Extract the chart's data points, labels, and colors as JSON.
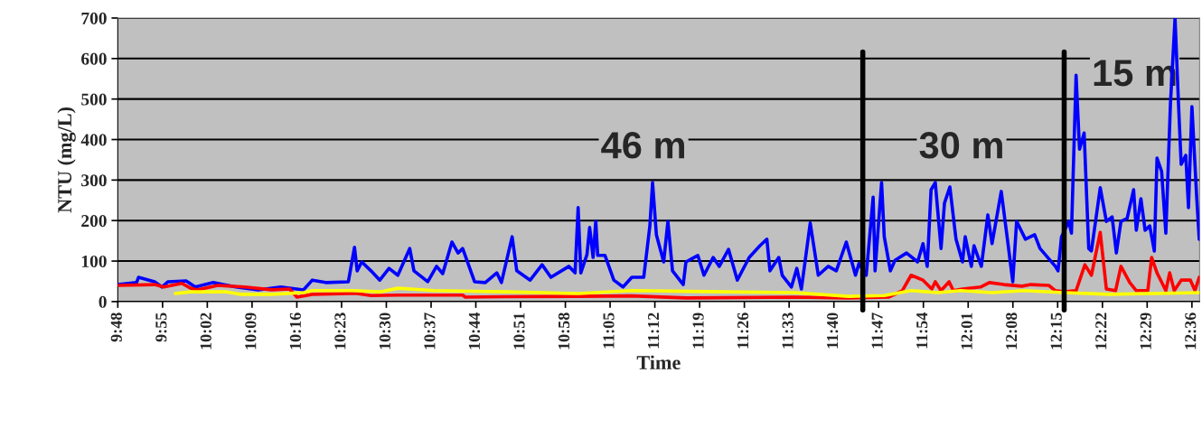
{
  "chart_data": {
    "type": "line",
    "xlabel": "Time",
    "ylabel": "NTU (mg/L)",
    "xlim": [
      9.8,
      12.62
    ],
    "ylim": [
      0,
      700
    ],
    "yticks": [
      0,
      100,
      200,
      300,
      400,
      500,
      600,
      700
    ],
    "xticks": [
      {
        "value": 9.8,
        "label": "9:48"
      },
      {
        "value": 9.9167,
        "label": "9:55"
      },
      {
        "value": 10.0333,
        "label": "10:02"
      },
      {
        "value": 10.15,
        "label": "10:09"
      },
      {
        "value": 10.2667,
        "label": "10:16"
      },
      {
        "value": 10.3833,
        "label": "10:23"
      },
      {
        "value": 10.5,
        "label": "10:30"
      },
      {
        "value": 10.6167,
        "label": "10:37"
      },
      {
        "value": 10.7333,
        "label": "10:44"
      },
      {
        "value": 10.85,
        "label": "10:51"
      },
      {
        "value": 10.9667,
        "label": "10:58"
      },
      {
        "value": 11.0833,
        "label": "11:05"
      },
      {
        "value": 11.2,
        "label": "11:12"
      },
      {
        "value": 11.3167,
        "label": "11:19"
      },
      {
        "value": 11.4333,
        "label": "11:26"
      },
      {
        "value": 11.55,
        "label": "11:33"
      },
      {
        "value": 11.6667,
        "label": "11:40"
      },
      {
        "value": 11.7833,
        "label": "11:47"
      },
      {
        "value": 11.9,
        "label": "11:54"
      },
      {
        "value": 12.0167,
        "label": "12:01"
      },
      {
        "value": 12.1333,
        "label": "12:08"
      },
      {
        "value": 12.25,
        "label": "12:15"
      },
      {
        "value": 12.3667,
        "label": "12:22"
      },
      {
        "value": 12.4833,
        "label": "12:29"
      },
      {
        "value": 12.6,
        "label": "12:36"
      }
    ],
    "grid": "y",
    "legend": false,
    "marker": "none",
    "line_style": "solid",
    "ref_lines": [
      {
        "axis": "x",
        "value": 11.742,
        "color": "#000000"
      },
      {
        "axis": "x",
        "value": 12.267,
        "color": "#000000"
      }
    ],
    "annotations": [
      "46 m",
      "30 m",
      "15 m"
    ],
    "series": [
      {
        "color": "#0000ff",
        "x": [
          9.8,
          9.849,
          9.854,
          9.896,
          9.915,
          9.931,
          9.978,
          10.002,
          10.049,
          10.108,
          10.166,
          10.225,
          10.284,
          10.307,
          10.342,
          10.401,
          10.417,
          10.424,
          10.436,
          10.46,
          10.483,
          10.507,
          10.53,
          10.561,
          10.572,
          10.608,
          10.631,
          10.647,
          10.671,
          10.687,
          10.699,
          10.73,
          10.758,
          10.788,
          10.8,
          10.828,
          10.84,
          10.875,
          10.906,
          10.929,
          10.976,
          10.992,
          11.0,
          11.007,
          11.023,
          11.03,
          11.039,
          11.046,
          11.051,
          11.07,
          11.093,
          11.117,
          11.14,
          11.171,
          11.187,
          11.194,
          11.204,
          11.223,
          11.234,
          11.246,
          11.274,
          11.281,
          11.312,
          11.328,
          11.352,
          11.368,
          11.392,
          11.415,
          11.446,
          11.474,
          11.492,
          11.5,
          11.523,
          11.532,
          11.556,
          11.57,
          11.582,
          11.605,
          11.626,
          11.652,
          11.673,
          11.699,
          11.723,
          11.732,
          11.751,
          11.769,
          11.774,
          11.791,
          11.798,
          11.814,
          11.826,
          11.856,
          11.885,
          11.899,
          11.91,
          11.92,
          11.931,
          11.946,
          11.955,
          11.969,
          11.985,
          12.002,
          12.009,
          12.025,
          12.032,
          12.051,
          12.068,
          12.079,
          12.103,
          12.119,
          12.133,
          12.143,
          12.166,
          12.19,
          12.204,
          12.244,
          12.251,
          12.26,
          12.279,
          12.286,
          12.298,
          12.307,
          12.319,
          12.331,
          12.338,
          12.361,
          12.377,
          12.392,
          12.403,
          12.415,
          12.431,
          12.448,
          12.455,
          12.467,
          12.478,
          12.49,
          12.502,
          12.509,
          12.521,
          12.532,
          12.544,
          12.556,
          12.565,
          12.572,
          12.584,
          12.591,
          12.6,
          12.612,
          12.619
        ],
        "values": [
          42,
          47,
          60,
          49,
          36,
          49,
          51,
          36,
          47,
          36,
          29,
          36,
          29,
          53,
          47,
          49,
          134,
          76,
          98,
          76,
          53,
          82,
          65,
          131,
          76,
          49,
          87,
          69,
          147,
          120,
          131,
          49,
          47,
          71,
          47,
          160,
          76,
          53,
          91,
          60,
          87,
          71,
          232,
          71,
          116,
          183,
          109,
          198,
          114,
          114,
          53,
          36,
          60,
          60,
          187,
          294,
          165,
          98,
          198,
          76,
          42,
          98,
          114,
          65,
          109,
          87,
          129,
          53,
          109,
          138,
          154,
          76,
          109,
          65,
          36,
          82,
          31,
          194,
          65,
          87,
          76,
          147,
          65,
          94,
          65,
          258,
          76,
          294,
          160,
          76,
          102,
          120,
          98,
          143,
          87,
          276,
          294,
          131,
          243,
          283,
          154,
          98,
          160,
          87,
          138,
          87,
          214,
          143,
          272,
          154,
          49,
          198,
          154,
          165,
          131,
          87,
          76,
          160,
          198,
          169,
          559,
          376,
          416,
          131,
          125,
          281,
          198,
          209,
          120,
          198,
          205,
          276,
          176,
          254,
          176,
          187,
          125,
          354,
          321,
          169,
          488,
          700,
          488,
          339,
          361,
          232,
          481,
          265,
          154
        ]
      },
      {
        "color": "#ff0000",
        "x": [
          9.8,
          9.896,
          9.92,
          9.967,
          9.99,
          10.007,
          10.061,
          10.131,
          10.201,
          10.248,
          10.267,
          10.307,
          10.401,
          10.424,
          10.46,
          10.53,
          10.699,
          10.706,
          10.812,
          11.0,
          11.14,
          11.281,
          11.563,
          11.704,
          11.809,
          11.845,
          11.868,
          11.899,
          11.922,
          11.931,
          11.946,
          11.967,
          11.978,
          12.002,
          12.049,
          12.072,
          12.11,
          12.157,
          12.18,
          12.227,
          12.244,
          12.267,
          12.298,
          12.321,
          12.338,
          12.361,
          12.377,
          12.401,
          12.415,
          12.438,
          12.455,
          12.485,
          12.495,
          12.509,
          12.532,
          12.542,
          12.554,
          12.572,
          12.596,
          12.608,
          12.619
        ],
        "values": [
          40,
          42,
          36,
          45,
          33,
          29,
          40,
          36,
          29,
          31,
          11,
          18,
          20,
          20,
          15,
          16,
          16,
          11,
          12,
          13,
          14,
          9,
          11,
          9,
          11,
          27,
          65,
          53,
          31,
          49,
          27,
          49,
          27,
          31,
          36,
          47,
          42,
          38,
          42,
          40,
          27,
          24,
          27,
          91,
          65,
          171,
          31,
          27,
          87,
          47,
          27,
          27,
          109,
          71,
          27,
          71,
          27,
          53,
          53,
          27,
          60
        ]
      },
      {
        "color": "#ffff00",
        "x": [
          9.95,
          9.99,
          10.084,
          10.119,
          10.201,
          10.284,
          10.307,
          10.413,
          10.483,
          10.53,
          10.624,
          10.812,
          11.0,
          11.14,
          11.563,
          11.704,
          11.798,
          11.868,
          11.938,
          11.997,
          12.079,
          12.162,
          12.267,
          12.385,
          12.502,
          12.619
        ],
        "values": [
          20,
          24,
          24,
          18,
          18,
          22,
          27,
          27,
          24,
          33,
          27,
          24,
          20,
          27,
          22,
          13,
          15,
          27,
          22,
          27,
          22,
          27,
          22,
          18,
          20,
          22
        ]
      }
    ]
  }
}
